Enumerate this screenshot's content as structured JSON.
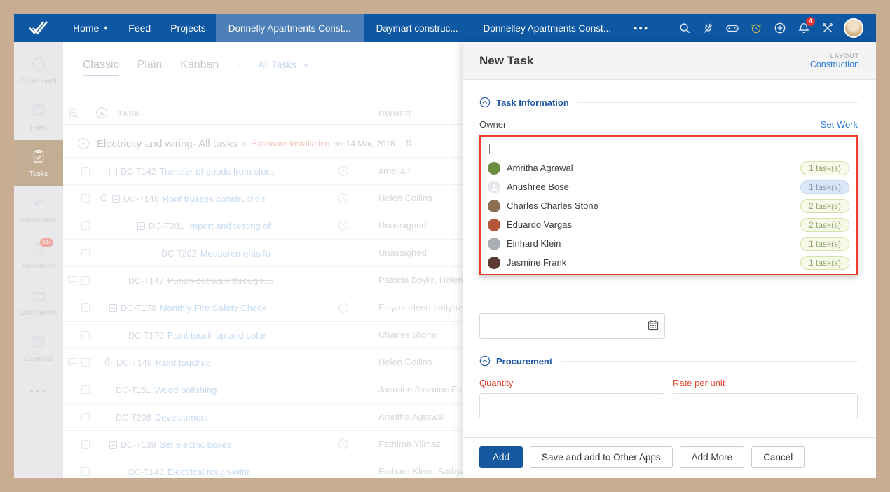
{
  "topbar": {
    "nav": [
      {
        "label": "Home",
        "caret": true
      },
      {
        "label": "Feed",
        "caret": false
      },
      {
        "label": "Projects",
        "caret": false
      }
    ],
    "project_tabs": [
      {
        "label": "Donnelly Apartments Const...",
        "active": true
      },
      {
        "label": "Daymart construc...",
        "active": false
      },
      {
        "label": "Donnelley Apartments Const...",
        "active": false
      }
    ],
    "more_label": "●●●",
    "icons": [
      "search",
      "plug",
      "gamepad",
      "alarm-clock",
      "add",
      "notifications",
      "tools"
    ],
    "notification_count": "4",
    "colors": {
      "bar": "#0d57a3",
      "active_tab": "#4d7fb9",
      "alarm_gold": "#c9b458",
      "badge_red": "#e8352e"
    }
  },
  "sidebar": {
    "items": [
      {
        "label": "Dashboard",
        "icon": "dashboard",
        "active": false,
        "badge": ""
      },
      {
        "label": "Feed",
        "icon": "feed",
        "active": false,
        "badge": ""
      },
      {
        "label": "Tasks",
        "icon": "tasks",
        "active": true,
        "badge": ""
      },
      {
        "label": "Milestones",
        "icon": "milestones",
        "active": false,
        "badge": ""
      },
      {
        "label": "Timesheet",
        "icon": "timesheet",
        "active": false,
        "badge": "99+"
      },
      {
        "label": "Documents",
        "icon": "documents",
        "active": false,
        "badge": ""
      },
      {
        "label": "Calendar",
        "icon": "calendar",
        "active": false,
        "badge": ""
      }
    ],
    "more_label": "●●●"
  },
  "main": {
    "view_tabs": [
      {
        "label": "Classic",
        "active": true
      },
      {
        "label": "Plain",
        "active": false
      },
      {
        "label": "Kanban",
        "active": false
      }
    ],
    "tab_separator": "-",
    "filter_label": "All Tasks",
    "columns": {
      "task": "TASK",
      "owner": "OWNER"
    },
    "group": {
      "title": "Electricity and wiring- All tasks",
      "in_label": "in",
      "milestone": "Hardware installation",
      "on_label": "on",
      "date": "14 Mar, 2018",
      "sort_glyph": "⇅"
    },
    "rows": [
      {
        "id": "DC-T142",
        "title": "Transfer of goods from stor...",
        "owner": "amelia.r",
        "indent": 66,
        "collapse": true,
        "timer": false,
        "clock": true,
        "comment": false,
        "strike": false
      },
      {
        "id": "DC-T148",
        "title": "Roof trusses construction",
        "owner": "Helen Collins",
        "indent": 52,
        "collapse": true,
        "timer": true,
        "clock": true,
        "comment": false,
        "strike": false
      },
      {
        "id": "DC-T201",
        "title": "Import and testing of",
        "owner": "Unassigned",
        "indent": 106,
        "collapse": true,
        "timer": false,
        "clock": true,
        "comment": false,
        "strike": false
      },
      {
        "id": "DC-T202",
        "title": "Measurements fo",
        "owner": "Unassigned",
        "indent": 140,
        "collapse": false,
        "timer": false,
        "clock": false,
        "comment": false,
        "strike": false
      },
      {
        "id": "DC-T147",
        "title": "Punch-out walk through ...",
        "owner": "Patricia Boyle, Helen...",
        "indent": 93,
        "collapse": false,
        "timer": false,
        "clock": false,
        "comment": true,
        "strike": true
      },
      {
        "id": "DC-T178",
        "title": "Monthly Fire Safety Check",
        "owner": "Faiyazudeen Imtiyaz...",
        "indent": 66,
        "collapse": true,
        "timer": false,
        "clock": true,
        "comment": false,
        "strike": false
      },
      {
        "id": "DC-T179",
        "title": "Paint touch-up and color",
        "owner": "Charles Stone",
        "indent": 93,
        "collapse": false,
        "timer": false,
        "clock": false,
        "comment": false,
        "strike": false
      },
      {
        "id": "DC-T149",
        "title": "Paint touchup",
        "owner": "Helen Collins",
        "indent": 58,
        "collapse": false,
        "timer": true,
        "clock": false,
        "comment": true,
        "strike": false
      },
      {
        "id": "DC-T151",
        "title": "Wood polishing",
        "owner": "Jasmine Jasmine Fra...",
        "indent": 75,
        "collapse": false,
        "timer": false,
        "clock": false,
        "comment": false,
        "strike": false
      },
      {
        "id": "DC-T208",
        "title": "Development",
        "owner": "Amritha Agrawal",
        "indent": 75,
        "collapse": false,
        "timer": false,
        "clock": false,
        "comment": false,
        "strike": false
      },
      {
        "id": "DC-T139",
        "title": "Set electric boxes",
        "owner": "Fathima Yilmaz",
        "indent": 66,
        "collapse": true,
        "timer": false,
        "clock": true,
        "comment": false,
        "strike": false
      },
      {
        "id": "DC-T143",
        "title": "Electrical rough-wire",
        "owner": "Einhard Klein, Sathya...",
        "indent": 93,
        "collapse": false,
        "timer": false,
        "clock": false,
        "comment": false,
        "strike": false
      }
    ]
  },
  "panel": {
    "title": "New Task",
    "layout_label": "LAYOUT",
    "layout_value": "Construction",
    "task_info_section": "Task Information",
    "owner_label": "Owner",
    "set_work_label": "Set Work",
    "owner_dropdown": [
      {
        "name": "Amritha Agrawal",
        "tasks": "1 task(s)",
        "pill": "green",
        "avatar_color": "#6b8e3f"
      },
      {
        "name": "Anushree Bose",
        "tasks": "1 task(s)",
        "pill": "blue",
        "avatar_color": "placeholder"
      },
      {
        "name": "Charles Charles Stone",
        "tasks": "2 task(s)",
        "pill": "green",
        "avatar_color": "#8a6f52"
      },
      {
        "name": "Eduardo Vargas",
        "tasks": "2 task(s)",
        "pill": "green",
        "avatar_color": "#b5563c"
      },
      {
        "name": "Einhard Klein",
        "tasks": "1 task(s)",
        "pill": "green",
        "avatar_color": "#aab0b6"
      },
      {
        "name": "Jasmine Frank",
        "tasks": "1 task(s)",
        "pill": "green",
        "avatar_color": "#5c3a33"
      }
    ],
    "date_field": {
      "value": "",
      "placeholder": ""
    },
    "procurement_section": "Procurement",
    "quantity_label": "Quantity",
    "rate_label": "Rate per unit",
    "quantity_value": "",
    "rate_value": "",
    "buttons": {
      "add": "Add",
      "save_other": "Save and add to Other Apps",
      "add_more": "Add More",
      "cancel": "Cancel"
    },
    "colors": {
      "accent_blue": "#2e7cd6",
      "section_blue": "#1d55a5",
      "required_red": "#e8432d",
      "dropdown_border": "#ee3b2c",
      "add_button": "#1558a0"
    }
  }
}
